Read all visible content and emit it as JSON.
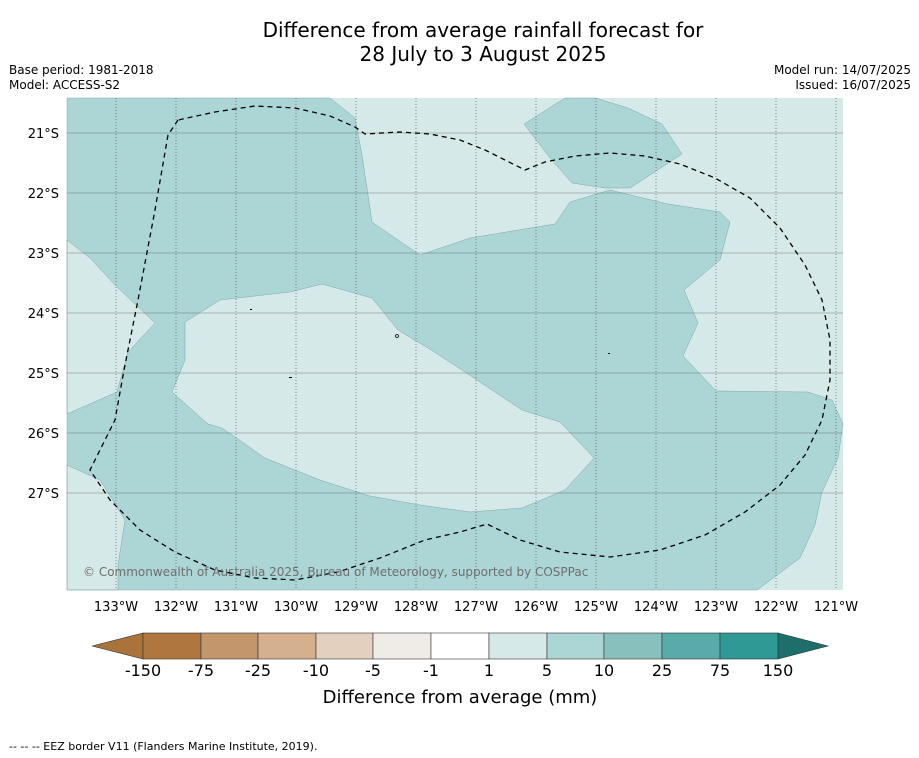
{
  "header": {
    "title_line1": "Difference from average rainfall forecast for",
    "title_line2": "28 July to 3 August 2025",
    "base_period": "Base period: 1981-2018",
    "model": "Model: ACCESS-S2",
    "model_run": "Model run: 14/07/2025",
    "issued": "Issued: 16/07/2025"
  },
  "map": {
    "latitude_labels": [
      "21°S",
      "22°S",
      "23°S",
      "24°S",
      "25°S",
      "26°S",
      "27°S"
    ],
    "longitude_labels": [
      "133°W",
      "132°W",
      "131°W",
      "130°W",
      "129°W",
      "128°W",
      "127°W",
      "126°W",
      "125°W",
      "124°W",
      "123°W",
      "122°W",
      "121°W"
    ],
    "copyright": "© Commonwealth of Australia 2025, Bureau of Meteorology, supported by COSPPac",
    "colors": {
      "cat_1_5": "#d5e9e8",
      "cat_5_10": "#acd5d5",
      "grid": "#4a4a4a"
    }
  },
  "colorbar": {
    "tick_labels": [
      "-150",
      "-75",
      "-25",
      "-10",
      "-5",
      "-1",
      "1",
      "5",
      "10",
      "25",
      "75",
      "150"
    ],
    "label": "Difference from average (mm)",
    "colors": [
      "#a9733a",
      "#af7640",
      "#c3966b",
      "#d4b08f",
      "#e4d0be",
      "#efebe6",
      "#ffffff",
      "#d5e9e8",
      "#acd5d5",
      "#88c0be",
      "#59abaa",
      "#2e9995",
      "#1d6f6c"
    ]
  },
  "footer": {
    "eez_note": "--  --  -- EEZ border V11 (Flanders Marine Institute, 2019)."
  }
}
